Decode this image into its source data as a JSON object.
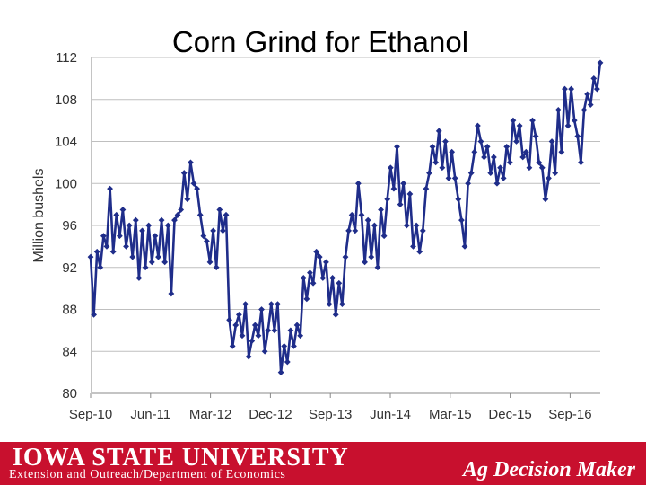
{
  "chart_data": {
    "type": "line",
    "title": "Corn Grind for Ethanol",
    "ylabel": "Million bushels",
    "xlabel": "",
    "ylim": [
      80,
      112
    ],
    "yticks": [
      80,
      84,
      88,
      92,
      96,
      100,
      104,
      108,
      112
    ],
    "xticks": [
      "Sep-10",
      "Jun-11",
      "Mar-12",
      "Dec-12",
      "Sep-13",
      "Jun-14",
      "Mar-15",
      "Dec-15",
      "Sep-16"
    ],
    "grid": true,
    "legend": "none",
    "series_color": "#1f2d8a",
    "series": [
      {
        "values": [
          93.0,
          87.5,
          93.5,
          92.0,
          95.0,
          94.0,
          99.5,
          93.5,
          97.0,
          95.0,
          97.5,
          94.0,
          96.0,
          93.0,
          96.5,
          91.0,
          95.5,
          92.0,
          96.0,
          92.5,
          95.0,
          93.0,
          96.5,
          92.5,
          96.0,
          89.5,
          96.5,
          97.0,
          97.5,
          101.0,
          98.5,
          102.0,
          100.0,
          99.5,
          97.0,
          95.0,
          94.5,
          92.5,
          95.5,
          92.0,
          97.5,
          95.5,
          97.0,
          87.0,
          84.5,
          86.5,
          87.5,
          85.5,
          88.5,
          83.5,
          85.0,
          86.5,
          85.5,
          88.0,
          84.0,
          86.0,
          88.5,
          86.0,
          88.5,
          82.0,
          84.5,
          83.0,
          86.0,
          84.5,
          86.5,
          85.5,
          91.0,
          89.0,
          91.5,
          90.5,
          93.5,
          93.0,
          91.0,
          92.5,
          88.5,
          91.0,
          87.5,
          90.5,
          88.5,
          93.0,
          95.5,
          97.0,
          95.5,
          100.0,
          97.0,
          92.5,
          96.5,
          93.0,
          96.0,
          92.0,
          97.5,
          95.0,
          98.5,
          101.5,
          99.5,
          103.5,
          98.0,
          100.0,
          96.0,
          99.0,
          94.0,
          96.0,
          93.5,
          95.5,
          99.5,
          101.0,
          103.5,
          102.0,
          105.0,
          101.5,
          104.0,
          100.5,
          103.0,
          100.5,
          98.5,
          96.5,
          94.0,
          100.0,
          101.0,
          103.0,
          105.5,
          104.0,
          102.5,
          103.5,
          101.0,
          102.5,
          100.0,
          101.5,
          100.5,
          103.5,
          102.0,
          106.0,
          104.0,
          105.5,
          102.5,
          103.0,
          101.5,
          106.0,
          104.5,
          102.0,
          101.5,
          98.5,
          100.5,
          104.0,
          101.0,
          107.0,
          103.0,
          109.0,
          105.5,
          109.0,
          106.0,
          104.5,
          102.0,
          107.0,
          108.5,
          107.5,
          110.0,
          109.0,
          111.5
        ]
      }
    ]
  },
  "footer": {
    "university": "IOWA STATE UNIVERSITY",
    "department": "Extension and Outreach/Department of Economics",
    "brand": "Ag Decision Maker"
  }
}
